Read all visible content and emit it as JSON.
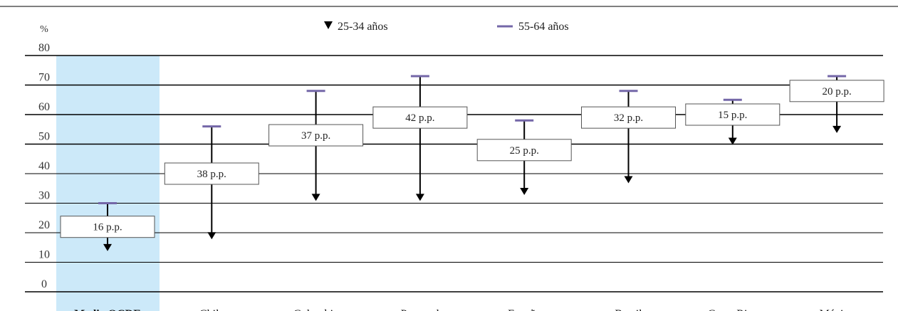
{
  "chart_data": {
    "type": "range",
    "unit_label": "%",
    "ylim": [
      0,
      80
    ],
    "yticks": [
      "0",
      "10",
      "20",
      "30",
      "40",
      "50",
      "60",
      "70",
      "80"
    ],
    "categories": [
      "Media OCDE",
      "Chile",
      "Colombia",
      "Portugal",
      "España",
      "Brasil",
      "Costa Rica",
      "México"
    ],
    "highlight_category": "Media OCDE",
    "series": [
      {
        "name": "25-34 años",
        "marker": "triangle-down",
        "color": "#000000",
        "values": [
          14,
          18,
          31,
          31,
          33,
          37,
          50,
          54
        ]
      },
      {
        "name": "55-64 años",
        "marker": "dash",
        "color": "#7467a8",
        "values": [
          30,
          56,
          68,
          73,
          58,
          68,
          65,
          73
        ]
      }
    ],
    "diff_labels": [
      "16 p.p.",
      "38 p.p.",
      "37 p.p.",
      "42 p.p.",
      "25 p.p.",
      "32 p.p.",
      "15 p.p.",
      "20 p.p."
    ],
    "diff_label_levels": [
      22,
      40,
      53,
      59,
      48,
      59,
      60,
      68
    ],
    "legend_position": "top-center",
    "grid": true,
    "colors": {
      "highlight_band": "#cce9f9",
      "gridline": "#000000",
      "arrow": "#000000",
      "dash": "#7467a8"
    }
  }
}
